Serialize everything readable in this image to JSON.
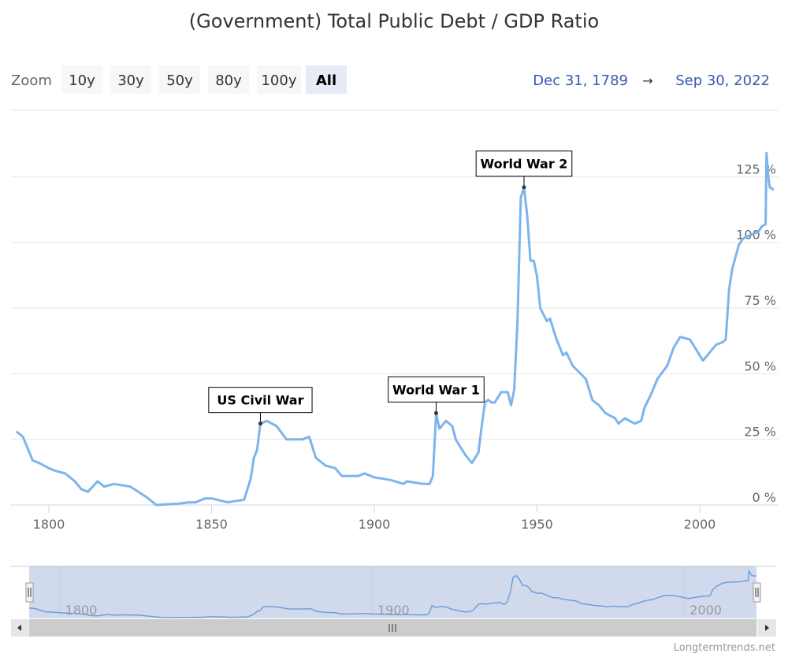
{
  "chart_data": {
    "type": "line",
    "title": "(Government) Total Public Debt / GDP Ratio",
    "xlabel": "",
    "ylabel": "",
    "xlim": [
      1789.99,
      2022.75
    ],
    "ylim": [
      0,
      140
    ],
    "x_ticks": [
      "1800",
      "1850",
      "1900",
      "1950",
      "2000"
    ],
    "y_ticks": [
      "0 %",
      "25 %",
      "50 %",
      "75 %",
      "100 %",
      "125 %"
    ],
    "grid": true,
    "line_color": "#7cb5ec",
    "points": [
      [
        1790,
        28
      ],
      [
        1792,
        26
      ],
      [
        1795,
        17
      ],
      [
        1797,
        16
      ],
      [
        1800,
        14
      ],
      [
        1802,
        13
      ],
      [
        1805,
        12
      ],
      [
        1808,
        9
      ],
      [
        1810,
        6
      ],
      [
        1812,
        5
      ],
      [
        1815,
        9
      ],
      [
        1817,
        7
      ],
      [
        1820,
        8
      ],
      [
        1825,
        7
      ],
      [
        1830,
        3
      ],
      [
        1833,
        0
      ],
      [
        1840,
        0.5
      ],
      [
        1843,
        1
      ],
      [
        1845,
        1
      ],
      [
        1848,
        2.5
      ],
      [
        1850,
        2.5
      ],
      [
        1855,
        1
      ],
      [
        1860,
        2
      ],
      [
        1862,
        10
      ],
      [
        1863,
        18
      ],
      [
        1864,
        21
      ],
      [
        1865,
        31
      ],
      [
        1867,
        32
      ],
      [
        1870,
        30
      ],
      [
        1873,
        25
      ],
      [
        1878,
        25
      ],
      [
        1880,
        26
      ],
      [
        1882,
        18
      ],
      [
        1885,
        15
      ],
      [
        1888,
        14
      ],
      [
        1890,
        11
      ],
      [
        1895,
        11
      ],
      [
        1897,
        12
      ],
      [
        1900,
        10.5
      ],
      [
        1905,
        9.5
      ],
      [
        1909,
        8
      ],
      [
        1910,
        9
      ],
      [
        1915,
        8
      ],
      [
        1917,
        8
      ],
      [
        1918,
        11
      ],
      [
        1919,
        35
      ],
      [
        1920,
        29
      ],
      [
        1922,
        32
      ],
      [
        1924,
        30
      ],
      [
        1925,
        25
      ],
      [
        1928,
        19
      ],
      [
        1930,
        16
      ],
      [
        1932,
        20
      ],
      [
        1933,
        30
      ],
      [
        1934,
        39
      ],
      [
        1935,
        40
      ],
      [
        1936,
        39
      ],
      [
        1937,
        39
      ],
      [
        1939,
        43
      ],
      [
        1941,
        43
      ],
      [
        1942,
        38
      ],
      [
        1943,
        44
      ],
      [
        1944,
        70
      ],
      [
        1945,
        117
      ],
      [
        1946,
        121
      ],
      [
        1947,
        110
      ],
      [
        1948,
        93
      ],
      [
        1949,
        93
      ],
      [
        1950,
        87
      ],
      [
        1951,
        75
      ],
      [
        1953,
        70
      ],
      [
        1954,
        71
      ],
      [
        1956,
        63
      ],
      [
        1958,
        57
      ],
      [
        1959,
        58
      ],
      [
        1961,
        53
      ],
      [
        1965,
        48
      ],
      [
        1967,
        40
      ],
      [
        1969,
        38
      ],
      [
        1971,
        35
      ],
      [
        1974,
        33
      ],
      [
        1975,
        31
      ],
      [
        1977,
        33
      ],
      [
        1980,
        31
      ],
      [
        1982,
        32
      ],
      [
        1983,
        37
      ],
      [
        1985,
        42
      ],
      [
        1987,
        48
      ],
      [
        1990,
        53
      ],
      [
        1992,
        60
      ],
      [
        1994,
        64
      ],
      [
        1997,
        63
      ],
      [
        1999,
        59
      ],
      [
        2001,
        55
      ],
      [
        2003,
        58
      ],
      [
        2005,
        61
      ],
      [
        2007,
        62
      ],
      [
        2008,
        63
      ],
      [
        2009,
        82
      ],
      [
        2010,
        90
      ],
      [
        2012,
        99
      ],
      [
        2013,
        101
      ],
      [
        2014,
        102
      ],
      [
        2016,
        103
      ],
      [
        2018,
        104
      ],
      [
        2019,
        106
      ],
      [
        2020.25,
        107
      ],
      [
        2020.5,
        134
      ],
      [
        2021,
        126
      ],
      [
        2021.5,
        121
      ],
      [
        2022.75,
        120
      ]
    ],
    "annotations": [
      {
        "label": "US Civil War",
        "x": 1865,
        "y": 31
      },
      {
        "label": "World War 1",
        "x": 1919,
        "y": 35
      },
      {
        "label": "World War 2",
        "x": 1946,
        "y": 121
      }
    ]
  },
  "range_selector": {
    "zoom_label": "Zoom",
    "buttons": [
      "10y",
      "30y",
      "50y",
      "80y",
      "100y",
      "All"
    ],
    "selected": "All",
    "from": "Dec 31, 1789",
    "arrow": "→",
    "to": "Sep 30, 2022"
  },
  "navigator": {
    "x_ticks": [
      "1800",
      "1900",
      "2000"
    ]
  },
  "credit": "Longtermtrends.net"
}
